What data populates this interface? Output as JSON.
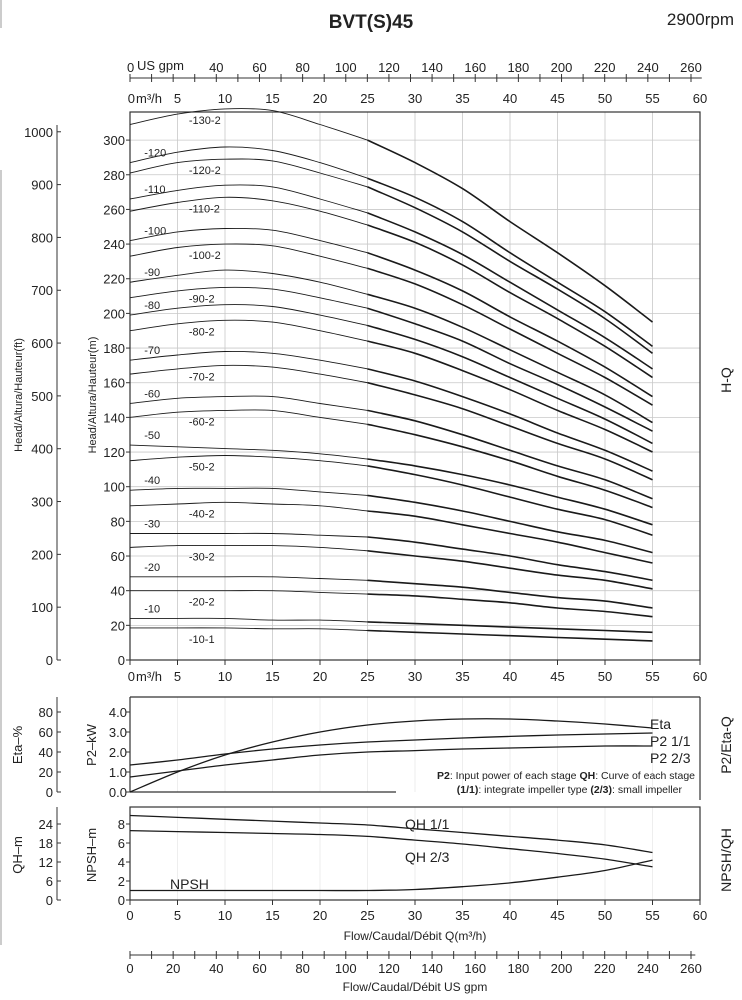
{
  "header": {
    "title": "BVT(S)45",
    "speed": "2900rpm"
  },
  "colors": {
    "curve": "#1a1a1a",
    "grid": "#c8c8c8",
    "axis": "#333333"
  },
  "chart_data": [
    {
      "type": "line",
      "name_label": "H-Q",
      "x_top_gpm_label": "US gpm",
      "x_top_m3h_label": "m³/h",
      "x_ticks_m3h": [
        0,
        5,
        10,
        15,
        20,
        25,
        30,
        35,
        40,
        45,
        50,
        55,
        60
      ],
      "x_ticks_gpm": [
        0,
        20,
        40,
        60,
        80,
        100,
        120,
        140,
        160,
        180,
        200,
        220,
        240,
        260
      ],
      "xlim": [
        0,
        60
      ],
      "ylabel_left_ft": "Head/Altura/Hauteur(ft)",
      "ylabel_left_m": "Head/Altura/Hauteur(m)",
      "y_ticks_ft": [
        0,
        100,
        200,
        300,
        400,
        500,
        600,
        700,
        800,
        900,
        1000
      ],
      "y_ticks_m": [
        0,
        20,
        40,
        60,
        80,
        100,
        120,
        140,
        160,
        180,
        200,
        220,
        240,
        260,
        280,
        300
      ],
      "ylim": [
        0,
        317
      ],
      "grid": true,
      "x": [
        0,
        5,
        10,
        15,
        20,
        25,
        30,
        35,
        40,
        45,
        50,
        55
      ],
      "series": [
        {
          "name": "-130-2",
          "type": "reduced",
          "values": [
            309,
            315,
            318,
            317,
            309,
            300,
            287,
            272,
            253,
            235,
            216,
            195
          ]
        },
        {
          "name": "-120",
          "type": "full",
          "values": [
            287,
            293,
            296,
            294,
            287,
            278,
            267,
            253,
            235,
            218,
            201,
            181
          ]
        },
        {
          "name": "-120-2",
          "type": "reduced",
          "values": [
            281,
            287,
            289,
            288,
            281,
            273,
            261,
            247,
            230,
            214,
            197,
            177
          ]
        },
        {
          "name": "-110",
          "type": "full",
          "values": [
            266,
            271,
            274,
            273,
            266,
            258,
            247,
            234,
            218,
            202,
            186,
            168
          ]
        },
        {
          "name": "-110-2",
          "type": "reduced",
          "values": [
            259,
            264,
            267,
            265,
            259,
            251,
            241,
            228,
            212,
            197,
            181,
            163
          ]
        },
        {
          "name": "-100",
          "type": "full",
          "values": [
            242,
            247,
            249,
            248,
            242,
            235,
            225,
            213,
            198,
            184,
            169,
            152
          ]
        },
        {
          "name": "-100-2",
          "type": "reduced",
          "values": [
            233,
            238,
            240,
            239,
            233,
            226,
            217,
            205,
            191,
            177,
            163,
            147
          ]
        },
        {
          "name": "-90",
          "type": "full",
          "values": [
            218,
            222,
            225,
            223,
            218,
            211,
            203,
            192,
            179,
            166,
            153,
            137
          ]
        },
        {
          "name": "-90-2",
          "type": "reduced",
          "values": [
            209,
            213,
            215,
            214,
            209,
            203,
            194,
            184,
            171,
            159,
            146,
            132
          ]
        },
        {
          "name": "-80",
          "type": "full",
          "values": [
            199,
            203,
            205,
            204,
            199,
            193,
            185,
            175,
            163,
            151,
            139,
            125
          ]
        },
        {
          "name": "-80-2",
          "type": "reduced",
          "values": [
            190,
            194,
            196,
            195,
            190,
            184,
            177,
            167,
            156,
            144,
            133,
            120
          ]
        },
        {
          "name": "-70",
          "type": "full",
          "values": [
            173,
            176,
            178,
            177,
            173,
            168,
            161,
            152,
            142,
            131,
            121,
            109
          ]
        },
        {
          "name": "-70-2",
          "type": "reduced",
          "values": [
            165,
            168,
            170,
            169,
            165,
            160,
            153,
            145,
            135,
            125,
            116,
            104
          ]
        },
        {
          "name": "-60",
          "type": "full",
          "values": [
            148,
            151,
            152,
            152,
            148,
            144,
            138,
            130,
            121,
            112,
            104,
            93
          ]
        },
        {
          "name": "-60-2",
          "type": "reduced",
          "values": [
            140,
            143,
            144,
            144,
            140,
            136,
            130,
            123,
            115,
            106,
            98,
            88
          ]
        },
        {
          "name": "-50",
          "type": "full",
          "values": [
            124,
            123,
            122,
            121,
            119,
            116,
            112,
            107,
            101,
            94,
            87,
            78
          ]
        },
        {
          "name": "-50-2",
          "type": "reduced",
          "values": [
            115,
            117,
            118,
            117,
            115,
            112,
            107,
            101,
            94,
            87,
            81,
            72
          ]
        },
        {
          "name": "-40",
          "type": "full",
          "values": [
            98,
            99,
            99,
            99,
            97,
            95,
            91,
            86,
            80,
            74,
            69,
            62
          ]
        },
        {
          "name": "-40-2",
          "type": "reduced",
          "values": [
            89,
            90,
            91,
            90,
            89,
            86,
            83,
            78,
            73,
            68,
            62,
            56
          ]
        },
        {
          "name": "-30",
          "type": "full",
          "values": [
            73,
            73,
            73,
            73,
            72,
            71,
            68,
            64,
            60,
            55,
            51,
            46
          ]
        },
        {
          "name": "-30-2",
          "type": "reduced",
          "values": [
            65,
            66,
            66,
            66,
            65,
            63,
            60,
            57,
            53,
            49,
            46,
            41
          ]
        },
        {
          "name": "-20",
          "type": "full",
          "values": [
            48,
            48,
            48,
            48,
            47,
            46,
            44,
            42,
            39,
            36,
            34,
            30
          ]
        },
        {
          "name": "-20-2",
          "type": "reduced",
          "values": [
            40,
            40,
            40,
            40,
            39,
            38,
            37,
            35,
            33,
            30,
            28,
            25
          ]
        },
        {
          "name": "-10",
          "type": "full",
          "values": [
            24,
            24,
            24,
            23,
            23,
            22,
            21,
            20,
            19,
            18,
            17,
            16
          ]
        },
        {
          "name": "-10-1",
          "type": "reduced",
          "values": [
            18.5,
            18.5,
            18.5,
            18,
            18,
            17,
            16,
            15,
            14,
            13,
            12,
            11
          ]
        }
      ]
    },
    {
      "type": "line",
      "name_label": "P2/Eta-Q",
      "ylabel_eta": "Eta–%",
      "ylabel_p2": "P2–kW",
      "y_ticks_eta": [
        0,
        20,
        40,
        60,
        80
      ],
      "y_ticks_p2": [
        "0.0",
        "1.0",
        "2.0",
        "3.0",
        "4.0"
      ],
      "ylim_p2": [
        0,
        4.5
      ],
      "x": [
        0,
        5,
        10,
        15,
        20,
        25,
        30,
        35,
        40,
        45,
        50,
        55
      ],
      "series": [
        {
          "name": "Eta",
          "unit": "%",
          "values": [
            0,
            20,
            37,
            50,
            60,
            67,
            71,
            73,
            73,
            71,
            68,
            64
          ]
        },
        {
          "name": "P2 1/1",
          "unit": "kW",
          "values": [
            1.35,
            1.6,
            1.9,
            2.15,
            2.35,
            2.5,
            2.6,
            2.7,
            2.78,
            2.85,
            2.9,
            2.95
          ]
        },
        {
          "name": "P2 2/3",
          "unit": "kW",
          "values": [
            0.75,
            1.05,
            1.35,
            1.6,
            1.85,
            2.0,
            2.07,
            2.15,
            2.2,
            2.25,
            2.3,
            2.3
          ]
        }
      ],
      "note_line1_bold1": "P2",
      "note_line1_text1": ": Input power of each stage ",
      "note_line1_bold2": "QH",
      "note_line1_text2": ": Curve of each stage",
      "note_line2_bold1": "(1/1)",
      "note_line2_text1": ": integrate impeller type ",
      "note_line2_bold2": "(2/3)",
      "note_line2_text2": ": small impeller"
    },
    {
      "type": "line",
      "name_label": "NPSH/QH",
      "ylabel_qh": "QH–m",
      "ylabel_npsh": "NPSH–m",
      "y_ticks_qh": [
        0,
        6,
        12,
        18,
        24
      ],
      "y_ticks_npsh": [
        0,
        2,
        4,
        6,
        8
      ],
      "x": [
        0,
        5,
        10,
        15,
        20,
        25,
        30,
        35,
        40,
        45,
        50,
        55
      ],
      "x_ticks_m3h": [
        0,
        5,
        10,
        15,
        20,
        25,
        30,
        35,
        40,
        45,
        50,
        55,
        60
      ],
      "xlabel_m3h": "Flow/Caudal/Débit Q(m³/h)",
      "x_ticks_gpm": [
        0,
        20,
        40,
        60,
        80,
        100,
        120,
        140,
        160,
        180,
        200,
        220,
        240,
        260
      ],
      "xlabel_gpm": "Flow/Caudal/Débit  US gpm",
      "series": [
        {
          "name": "QH 1/1",
          "unit": "QH-m",
          "values": [
            26.7,
            26.1,
            25.5,
            24.9,
            24.3,
            23.7,
            22.5,
            21.3,
            20.1,
            18.9,
            17.4,
            15.0
          ]
        },
        {
          "name": "QH 2/3",
          "unit": "QH-m",
          "values": [
            21.9,
            21.6,
            21.3,
            21.0,
            20.7,
            20.1,
            18.9,
            17.7,
            16.2,
            14.7,
            12.9,
            10.5
          ]
        },
        {
          "name": "NPSH",
          "unit": "NPSH-m",
          "values": [
            1.0,
            1.0,
            1.0,
            1.0,
            1.0,
            1.0,
            1.1,
            1.4,
            1.8,
            2.4,
            3.1,
            4.2
          ]
        }
      ]
    }
  ]
}
